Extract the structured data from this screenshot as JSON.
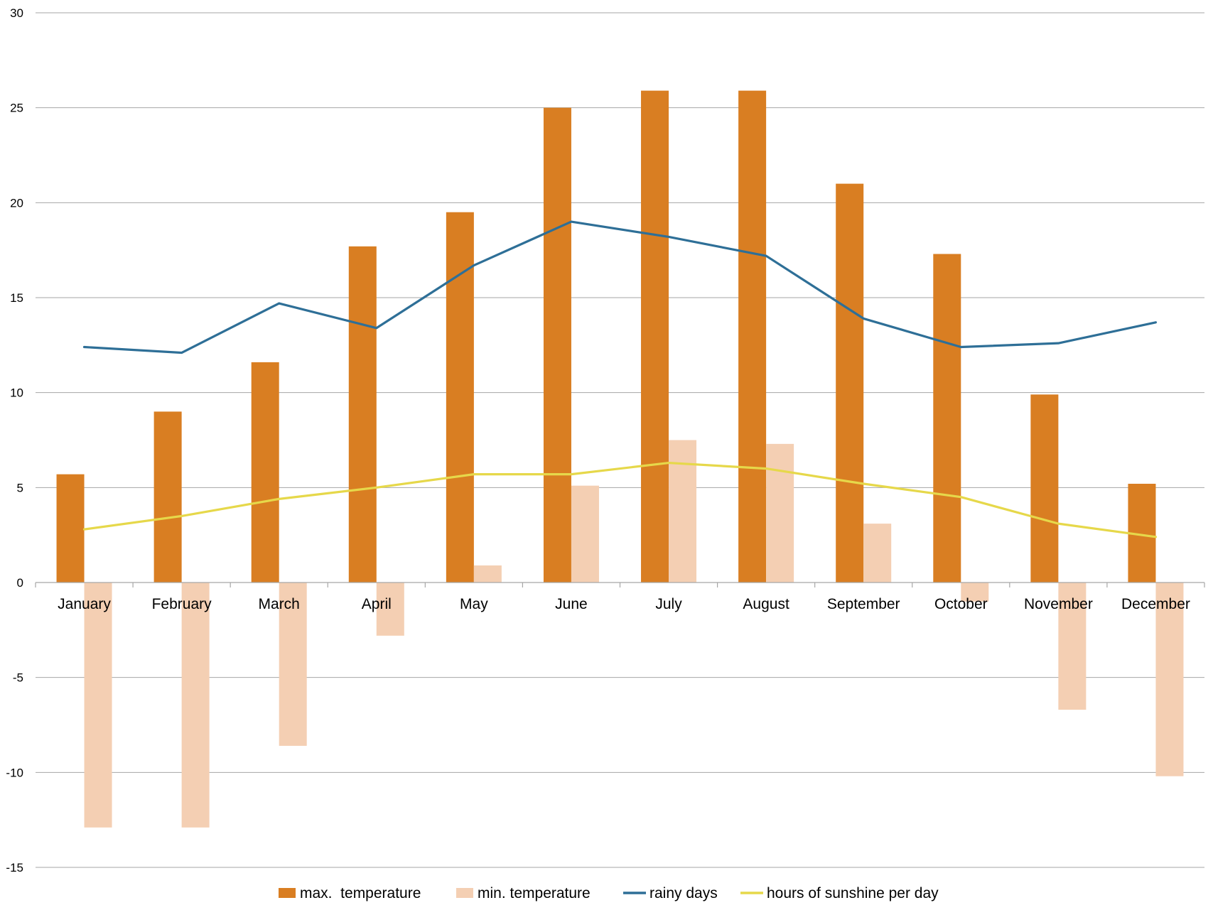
{
  "chart_data": {
    "type": "bar",
    "categories": [
      "January",
      "February",
      "March",
      "April",
      "May",
      "June",
      "July",
      "August",
      "September",
      "October",
      "November",
      "December"
    ],
    "y_ticks": [
      "30",
      "25",
      "20",
      "15",
      "10",
      "5",
      "0",
      "-5",
      "-10",
      "-15"
    ],
    "ylim": [
      -15,
      30
    ],
    "grid": true,
    "legend_position": "bottom",
    "series": [
      {
        "name": "max.  temperature",
        "kind": "bar",
        "color": "#D97E22",
        "values": [
          5.7,
          9.0,
          11.6,
          17.7,
          19.5,
          25.0,
          25.9,
          25.9,
          21.0,
          17.3,
          9.9,
          5.2
        ]
      },
      {
        "name": "min. temperature",
        "kind": "bar",
        "color": "#F4CFB3",
        "values": [
          -12.9,
          -12.9,
          -8.6,
          -2.8,
          0.9,
          5.1,
          7.5,
          7.3,
          3.1,
          -1.0,
          -6.7,
          -10.2
        ]
      },
      {
        "name": "rainy days",
        "kind": "line",
        "color": "#2E6F97",
        "values": [
          12.4,
          12.1,
          14.7,
          13.4,
          16.7,
          19.0,
          18.2,
          17.2,
          13.9,
          12.4,
          12.6,
          13.7
        ]
      },
      {
        "name": "hours of sunshine per day",
        "kind": "line",
        "color": "#E6D84A",
        "values": [
          2.8,
          3.5,
          4.4,
          5.0,
          5.7,
          5.7,
          6.3,
          6.0,
          5.2,
          4.5,
          3.1,
          2.4
        ]
      }
    ]
  }
}
